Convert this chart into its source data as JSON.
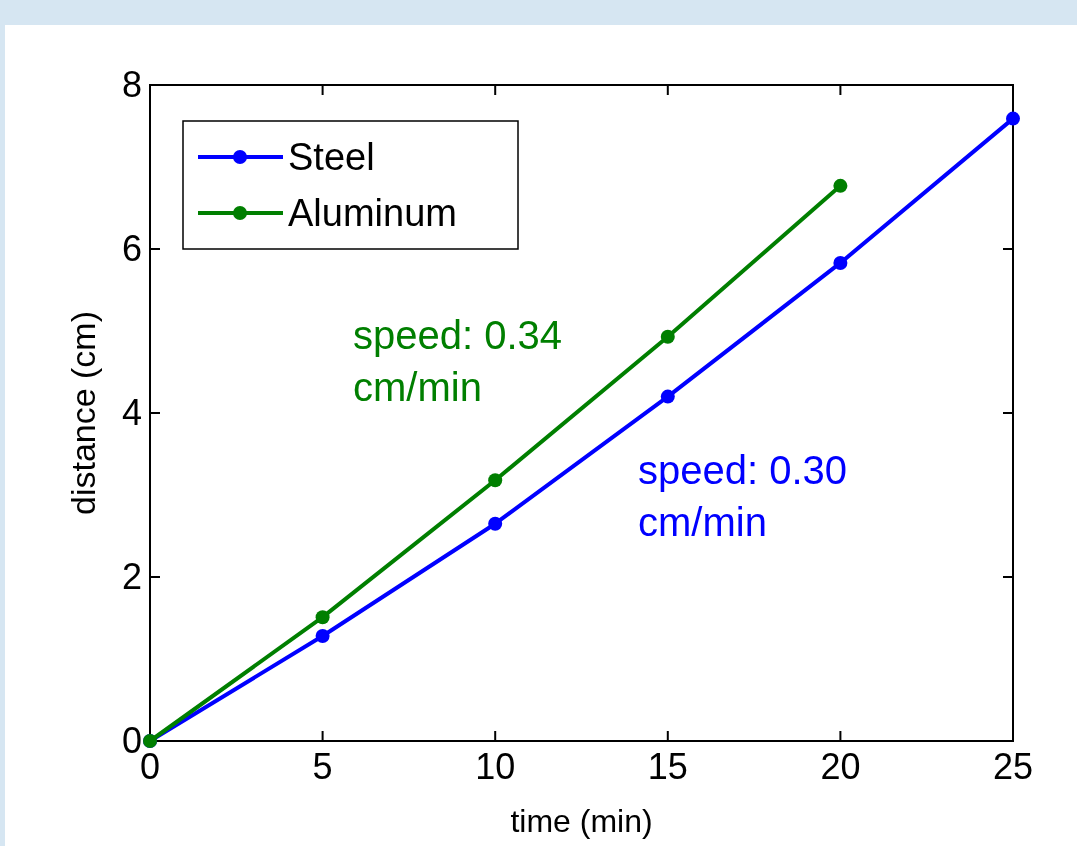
{
  "chart_data": {
    "type": "line",
    "xlabel": "time (min)",
    "ylabel": "distance (cm)",
    "x": [
      0,
      5,
      10,
      15,
      20,
      25
    ],
    "series": [
      {
        "name": "Steel",
        "color": "#0000ff",
        "values": [
          0,
          1.28,
          2.65,
          4.2,
          5.83,
          7.59
        ]
      },
      {
        "name": "Aluminum",
        "color": "#007f00",
        "values": [
          0,
          1.51,
          3.18,
          4.93,
          6.77,
          null
        ]
      }
    ],
    "xlim": [
      0,
      25
    ],
    "xticks": [
      0,
      5,
      10,
      15,
      20,
      25
    ],
    "ylim": [
      0,
      8
    ],
    "yticks": [
      0,
      2,
      4,
      6,
      8
    ],
    "annotations": [
      "speed: 0.30 cm/min",
      "speed: 0.34 cm/min"
    ],
    "legend": "top left",
    "marker": "circle",
    "line_style": "solid",
    "grid": false
  }
}
